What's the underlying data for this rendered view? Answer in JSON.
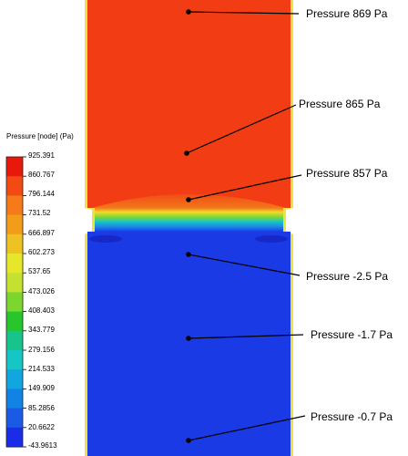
{
  "legend": {
    "title": "Pressure [node] (Pa)",
    "ticks": [
      "925.391",
      "860.767",
      "796.144",
      "731.52",
      "666.897",
      "602.273",
      "537.65",
      "473.026",
      "408.403",
      "343.779",
      "279.156",
      "214.533",
      "149.909",
      "85.2856",
      "20.6622",
      "-43.9613"
    ],
    "colors": [
      "#e8180a",
      "#f24a12",
      "#f57a1a",
      "#f29c1a",
      "#eec222",
      "#e6e62a",
      "#c4e030",
      "#7cd630",
      "#26c62c",
      "#16c48c",
      "#16c6c4",
      "#12a6e0",
      "#1282e4",
      "#1a5ae4",
      "#1a2ce8"
    ]
  },
  "callouts": [
    {
      "text": "Pressure 869 Pa"
    },
    {
      "text": "Pressure 865 Pa"
    },
    {
      "text": "Pressure 857 Pa"
    },
    {
      "text": "Pressure -2.5 Pa"
    },
    {
      "text": "Pressure -1.7 Pa"
    },
    {
      "text": "Pressure -0.7 Pa"
    }
  ],
  "colors": {
    "high_pressure": "#f23c14",
    "low_pressure": "#1a3ae6",
    "wall": "#f0e040"
  }
}
